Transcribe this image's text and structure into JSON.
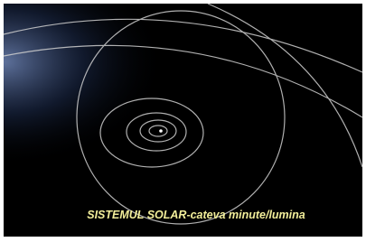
{
  "caption": "SISTEMUL SOLAR-cateva minute/lumina"
}
